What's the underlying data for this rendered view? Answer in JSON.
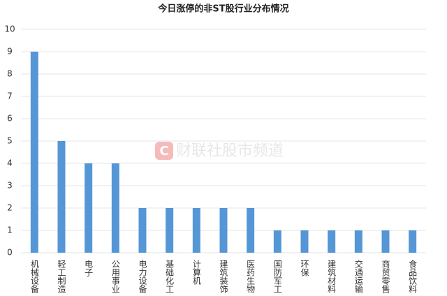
{
  "chart_data": {
    "type": "bar",
    "title": "今日涨停的非ST股行业分布情况",
    "categories": [
      "机械设备",
      "轻工制造",
      "电子",
      "公用事业",
      "电力设备",
      "基础化工",
      "计算机",
      "建筑装饰",
      "医药生物",
      "国防军工",
      "环保",
      "建筑材料",
      "交通运输",
      "商贸零售",
      "食品饮料"
    ],
    "values": [
      9,
      5,
      4,
      4,
      2,
      2,
      2,
      2,
      2,
      1,
      1,
      1,
      1,
      1,
      1
    ],
    "color": "#5596d6",
    "ylim": [
      0,
      10
    ],
    "yticks": [
      0,
      1,
      2,
      3,
      4,
      5,
      6,
      7,
      8,
      9,
      10
    ],
    "grid": true,
    "watermark": "财联社股市频道"
  }
}
